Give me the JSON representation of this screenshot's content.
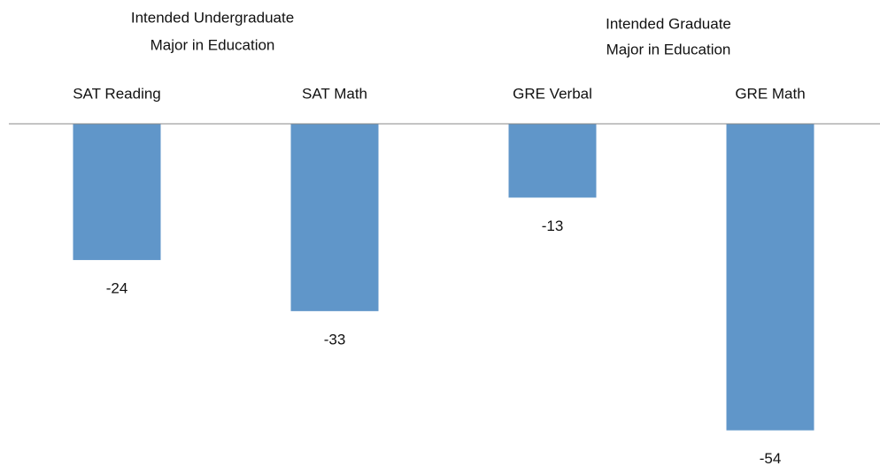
{
  "chart_data": {
    "type": "bar",
    "groups": [
      {
        "lines": [
          "Intended Undergraduate",
          "Major in Education"
        ]
      },
      {
        "lines": [
          "Intended Graduate",
          "Major in Education"
        ]
      }
    ],
    "categories": [
      "SAT Reading",
      "SAT Math",
      "GRE Verbal",
      "GRE Math"
    ],
    "values": [
      -24,
      -33,
      -13,
      -54
    ],
    "color": "#6096c9"
  }
}
